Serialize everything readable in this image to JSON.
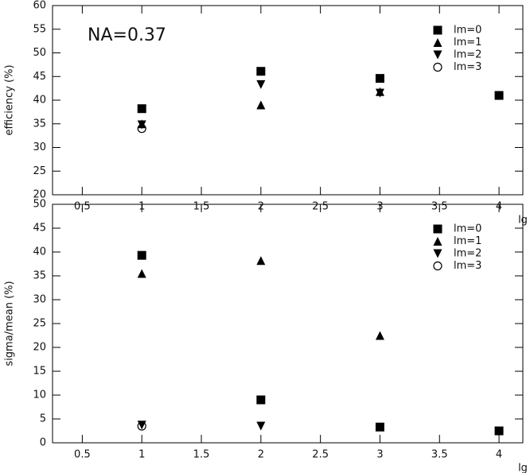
{
  "chart_data": [
    {
      "type": "scatter",
      "y_label": "efficiency (%)",
      "x_label": "lg",
      "annotation": "NA=0.37",
      "xlim": [
        0.25,
        4.2
      ],
      "xticks": [
        0.5,
        1,
        1.5,
        2,
        2.5,
        3,
        3.5,
        4
      ],
      "ylim": [
        20,
        60
      ],
      "yticks": [
        20,
        25,
        30,
        35,
        40,
        45,
        50,
        55,
        60
      ],
      "legend": "upper right",
      "series": [
        {
          "name": "lm=0",
          "color": "#000000",
          "marker": "square",
          "x": [
            1,
            2,
            3,
            4
          ],
          "values": [
            38.2,
            46.1,
            44.6,
            41
          ]
        },
        {
          "name": "lm=1",
          "color": "#000000",
          "marker": "triangle-up",
          "x": [
            1,
            2,
            3
          ],
          "values": [
            35,
            39,
            41.8
          ]
        },
        {
          "name": "lm=2",
          "color": "#000000",
          "marker": "triangle-down",
          "x": [
            1,
            2,
            3
          ],
          "values": [
            34.8,
            43.3,
            41.5
          ]
        },
        {
          "name": "lm=3",
          "color": "#000000",
          "marker": "circle-open",
          "x": [
            1
          ],
          "values": [
            34
          ]
        }
      ]
    },
    {
      "type": "scatter",
      "y_label": "sigma/mean (%)",
      "x_label": "lg",
      "xlim": [
        0.25,
        4.2
      ],
      "xticks": [
        0.5,
        1,
        1.5,
        2,
        2.5,
        3,
        3.5,
        4
      ],
      "ylim": [
        0,
        50
      ],
      "yticks": [
        0,
        5,
        10,
        15,
        20,
        25,
        30,
        35,
        40,
        45,
        50
      ],
      "legend": "upper right",
      "series": [
        {
          "name": "lm=0",
          "color": "#000000",
          "marker": "square",
          "x": [
            1,
            2,
            3,
            4
          ],
          "values": [
            39.3,
            9,
            3.3,
            2.5
          ]
        },
        {
          "name": "lm=1",
          "color": "#000000",
          "marker": "triangle-up",
          "x": [
            1,
            2,
            3
          ],
          "values": [
            35.5,
            38.2,
            22.5
          ]
        },
        {
          "name": "lm=2",
          "color": "#000000",
          "marker": "triangle-down",
          "x": [
            1,
            2
          ],
          "values": [
            3.7,
            3.5
          ]
        },
        {
          "name": "lm=3",
          "color": "#000000",
          "marker": "circle-open",
          "x": [
            1
          ],
          "values": [
            3.5
          ]
        }
      ]
    }
  ]
}
